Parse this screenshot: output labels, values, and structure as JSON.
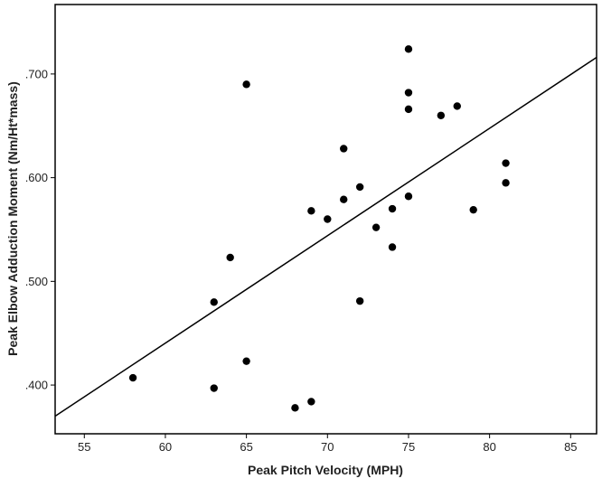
{
  "chart_data": {
    "type": "scatter",
    "title": "",
    "xlabel": "Peak Pitch Velocity (MPH)",
    "ylabel": "Peak Elbow Adduction Moment (Nm/Ht*mass)",
    "xlim": [
      53.2,
      86.6
    ],
    "ylim": [
      0.353,
      0.767
    ],
    "x_ticks": [
      55,
      60,
      65,
      70,
      75,
      80,
      85
    ],
    "y_ticks": [
      0.4,
      0.5,
      0.6,
      0.7
    ],
    "x_tick_labels": [
      "55",
      "60",
      "65",
      "70",
      "75",
      "80",
      "85"
    ],
    "y_tick_labels": [
      ".400",
      ".500",
      ".600",
      ".700"
    ],
    "grid": false,
    "legend": "none",
    "series": [
      {
        "points": [
          {
            "x": 58,
            "y": 0.407
          },
          {
            "x": 63,
            "y": 0.48
          },
          {
            "x": 63,
            "y": 0.397
          },
          {
            "x": 64,
            "y": 0.523
          },
          {
            "x": 65,
            "y": 0.69
          },
          {
            "x": 65,
            "y": 0.423
          },
          {
            "x": 68,
            "y": 0.378
          },
          {
            "x": 69,
            "y": 0.384
          },
          {
            "x": 69,
            "y": 0.568
          },
          {
            "x": 70,
            "y": 0.56
          },
          {
            "x": 71,
            "y": 0.579
          },
          {
            "x": 71,
            "y": 0.628
          },
          {
            "x": 72,
            "y": 0.591
          },
          {
            "x": 72,
            "y": 0.481
          },
          {
            "x": 73,
            "y": 0.552
          },
          {
            "x": 74,
            "y": 0.533
          },
          {
            "x": 74,
            "y": 0.57
          },
          {
            "x": 75,
            "y": 0.724
          },
          {
            "x": 75,
            "y": 0.682
          },
          {
            "x": 75,
            "y": 0.666
          },
          {
            "x": 75,
            "y": 0.582
          },
          {
            "x": 77,
            "y": 0.66
          },
          {
            "x": 78,
            "y": 0.669
          },
          {
            "x": 79,
            "y": 0.569
          },
          {
            "x": 81,
            "y": 0.614
          },
          {
            "x": 81,
            "y": 0.595
          }
        ]
      }
    ],
    "fit_line": {
      "type": "linear",
      "points": [
        {
          "x": 53.2,
          "y": 0.37
        },
        {
          "x": 86.6,
          "y": 0.716
        }
      ]
    },
    "colors": {
      "points": "#000000",
      "line": "#000000",
      "axes": "#000000",
      "text": "#222222",
      "background": "#ffffff"
    }
  }
}
